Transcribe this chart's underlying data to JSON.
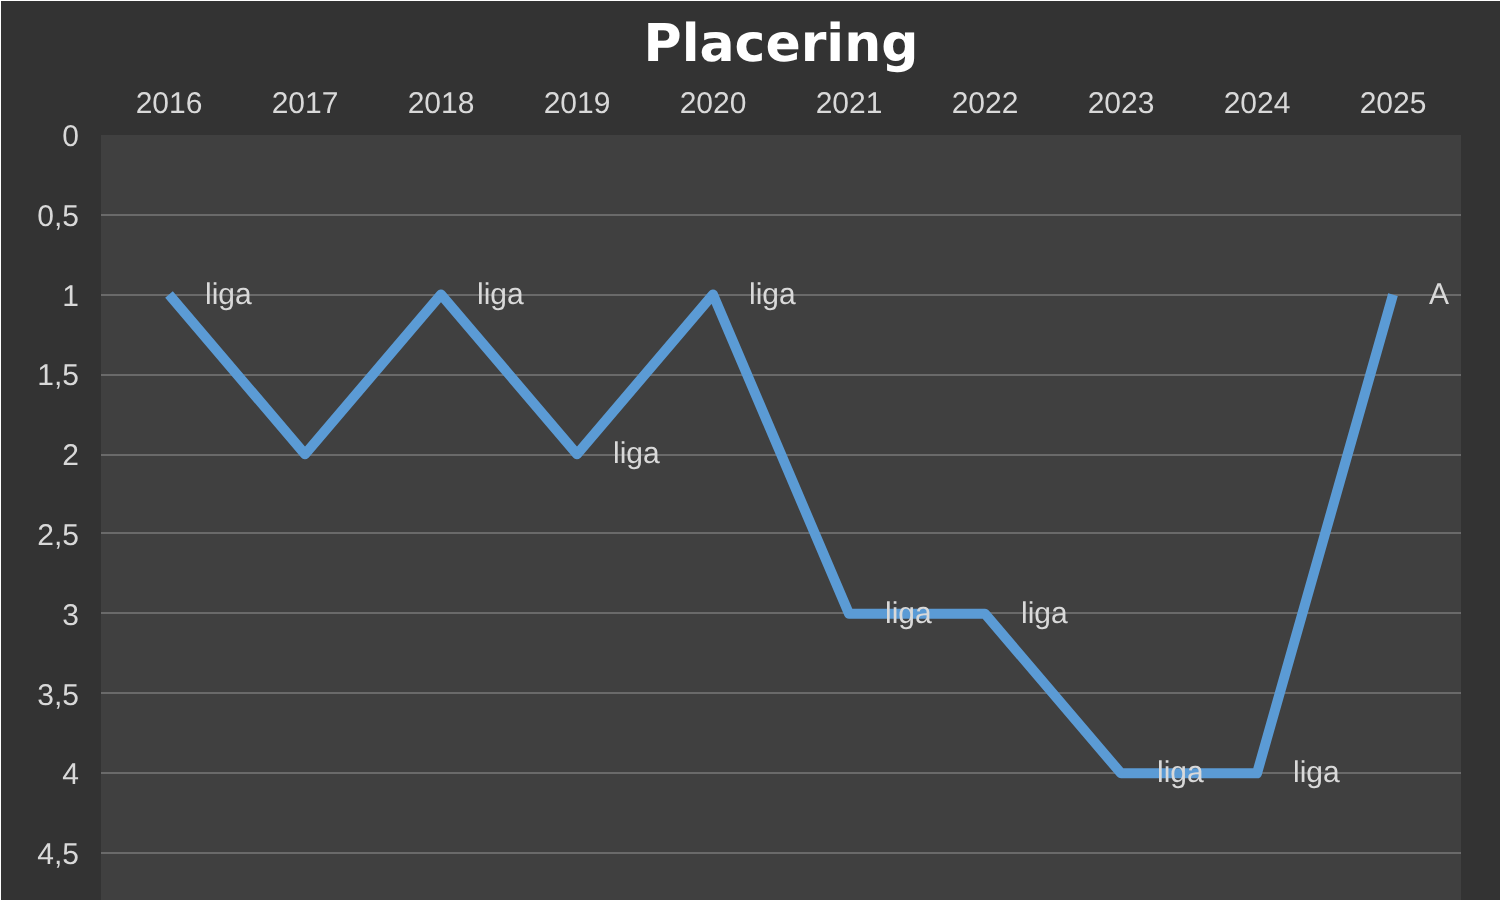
{
  "chart_data": {
    "type": "line",
    "title": "Placering",
    "categories": [
      "2016",
      "2017",
      "2018",
      "2019",
      "2020",
      "2021",
      "2022",
      "2023",
      "2024",
      "2025"
    ],
    "series": [
      {
        "color": "#5b9bd5",
        "values": [
          1,
          2,
          1,
          2,
          1,
          3,
          3,
          4,
          4,
          1
        ],
        "value_labels": [
          "liga",
          null,
          "liga",
          "liga",
          "liga",
          "liga",
          "liga",
          "liga",
          "liga",
          "A"
        ]
      }
    ],
    "ylim": [
      4.8,
      0
    ],
    "yticks": [
      0,
      {
        "value": 0.5,
        "label": "0,5"
      },
      1,
      {
        "value": 1.5,
        "label": "1,5"
      },
      2,
      {
        "value": 2.5,
        "label": "2,5"
      },
      3,
      {
        "value": 3.5,
        "label": "3,5"
      },
      4,
      {
        "value": 4.5,
        "label": "4,5"
      }
    ],
    "grid": "y",
    "marker": "none",
    "line_style": "solid"
  }
}
